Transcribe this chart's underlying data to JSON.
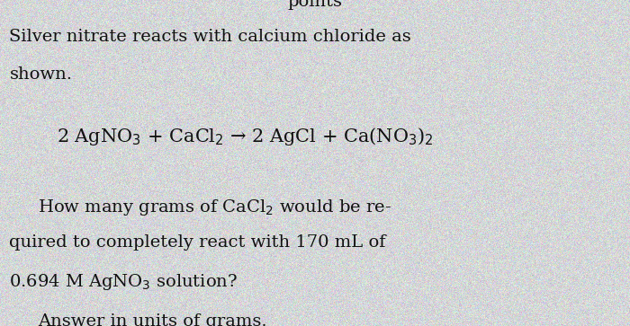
{
  "bg_color": "#d8d8d0",
  "text_color": "#111111",
  "top_partial": "••• points",
  "line1": "Silver nitrate reacts with calcium chloride as",
  "line2": "shown.",
  "equation": "2 AgNO$_3$ + CaCl$_2$ → 2 AgCl + Ca(NO$_3$)$_2$",
  "question_line1": "How many grams of CaCl$_2$ would be re-",
  "question_line2": "quired to completely react with 170 mL of",
  "question_line3": "0.694 M AgNO$_3$ solution?",
  "answer_line": "Answer in units of grams.",
  "font_size_main": 14,
  "font_size_eq": 15,
  "top_text": "points"
}
